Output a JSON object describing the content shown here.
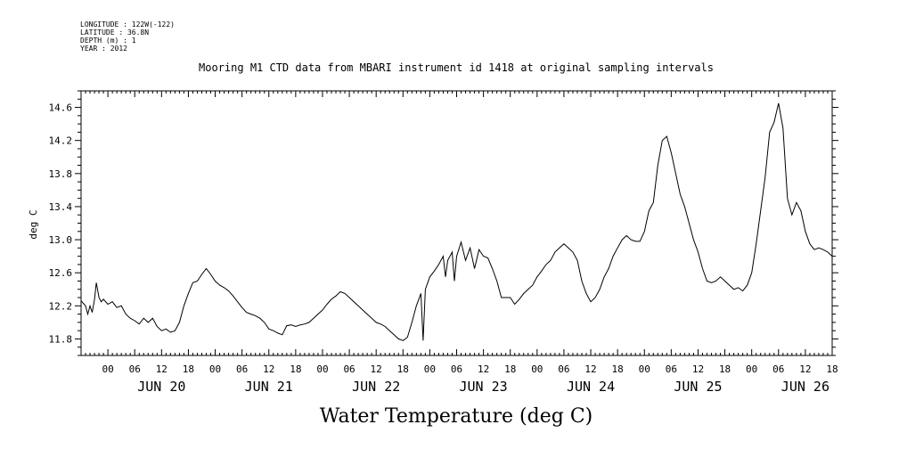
{
  "header": {
    "longitude": "LONGITUDE : 122W(-122)",
    "latitude": "LATITUDE : 36.8N",
    "depth": "DEPTH (m) : 1",
    "year": "YEAR : 2012"
  },
  "chart_data": {
    "type": "line",
    "title": "Mooring M1 CTD data from MBARI instrument id 1418 at original sampling intervals",
    "ylabel": "deg C",
    "xlabel": "Water Temperature (deg C)",
    "ylim": [
      11.6,
      14.8
    ],
    "xlim_hours": [
      -6,
      162
    ],
    "yticks": [
      "11.8",
      "12.2",
      "12.6",
      "13.0",
      "13.4",
      "13.8",
      "14.2",
      "14.6"
    ],
    "hour_labels": [
      "00",
      "06",
      "12",
      "18",
      "00",
      "06",
      "12",
      "18",
      "00",
      "06",
      "12",
      "18",
      "00",
      "06",
      "12",
      "18",
      "00",
      "06",
      "12",
      "18",
      "00",
      "06",
      "12",
      "18",
      "00",
      "06",
      "12",
      "18"
    ],
    "day_labels": [
      "JUN 20",
      "JUN 21",
      "JUN 22",
      "JUN 23",
      "JUN 24",
      "JUN 25",
      "JUN 26"
    ],
    "x_units": "hours from JUN 20 00:00",
    "series": [
      {
        "values": [
          [
            -6,
            12.26
          ],
          [
            -5,
            12.2
          ],
          [
            -4.5,
            12.1
          ],
          [
            -4,
            12.2
          ],
          [
            -3.5,
            12.12
          ],
          [
            -3,
            12.28
          ],
          [
            -2.6,
            12.48
          ],
          [
            -2,
            12.3
          ],
          [
            -1.5,
            12.25
          ],
          [
            -1,
            12.28
          ],
          [
            0,
            12.22
          ],
          [
            1,
            12.25
          ],
          [
            2,
            12.18
          ],
          [
            3,
            12.2
          ],
          [
            4,
            12.1
          ],
          [
            5,
            12.05
          ],
          [
            6,
            12.02
          ],
          [
            7,
            11.98
          ],
          [
            8,
            12.05
          ],
          [
            9,
            12.0
          ],
          [
            10,
            12.05
          ],
          [
            11,
            11.95
          ],
          [
            12,
            11.9
          ],
          [
            13,
            11.92
          ],
          [
            14,
            11.88
          ],
          [
            15,
            11.9
          ],
          [
            16,
            12.0
          ],
          [
            17,
            12.2
          ],
          [
            18,
            12.35
          ],
          [
            19,
            12.48
          ],
          [
            20,
            12.5
          ],
          [
            21,
            12.58
          ],
          [
            22,
            12.65
          ],
          [
            23,
            12.58
          ],
          [
            24,
            12.5
          ],
          [
            25,
            12.45
          ],
          [
            26,
            12.42
          ],
          [
            27,
            12.38
          ],
          [
            28,
            12.32
          ],
          [
            29,
            12.25
          ],
          [
            30,
            12.18
          ],
          [
            31,
            12.12
          ],
          [
            32,
            12.1
          ],
          [
            33,
            12.08
          ],
          [
            34,
            12.05
          ],
          [
            35,
            12.0
          ],
          [
            36,
            11.92
          ],
          [
            37,
            11.9
          ],
          [
            38,
            11.87
          ],
          [
            39,
            11.85
          ],
          [
            40,
            11.96
          ],
          [
            41,
            11.97
          ],
          [
            42,
            11.95
          ],
          [
            43,
            11.97
          ],
          [
            44,
            11.98
          ],
          [
            45,
            12.0
          ],
          [
            46,
            12.05
          ],
          [
            47,
            12.1
          ],
          [
            48,
            12.15
          ],
          [
            49,
            12.22
          ],
          [
            50,
            12.28
          ],
          [
            51,
            12.32
          ],
          [
            52,
            12.37
          ],
          [
            53,
            12.35
          ],
          [
            54,
            12.3
          ],
          [
            55,
            12.25
          ],
          [
            56,
            12.2
          ],
          [
            57,
            12.15
          ],
          [
            58,
            12.1
          ],
          [
            59,
            12.05
          ],
          [
            60,
            12.0
          ],
          [
            61,
            11.98
          ],
          [
            62,
            11.95
          ],
          [
            63,
            11.9
          ],
          [
            64,
            11.85
          ],
          [
            65,
            11.8
          ],
          [
            66,
            11.78
          ],
          [
            67,
            11.82
          ],
          [
            68,
            12.0
          ],
          [
            69,
            12.2
          ],
          [
            70,
            12.35
          ],
          [
            70.5,
            11.78
          ],
          [
            71,
            12.4
          ],
          [
            72,
            12.55
          ],
          [
            73,
            12.62
          ],
          [
            74,
            12.7
          ],
          [
            75,
            12.8
          ],
          [
            75.5,
            12.55
          ],
          [
            76,
            12.75
          ],
          [
            77,
            12.85
          ],
          [
            77.5,
            12.5
          ],
          [
            78,
            12.8
          ],
          [
            79,
            12.97
          ],
          [
            80,
            12.75
          ],
          [
            81,
            12.9
          ],
          [
            82,
            12.65
          ],
          [
            83,
            12.88
          ],
          [
            84,
            12.8
          ],
          [
            85,
            12.78
          ],
          [
            86,
            12.65
          ],
          [
            87,
            12.5
          ],
          [
            88,
            12.3
          ],
          [
            89,
            12.3
          ],
          [
            90,
            12.3
          ],
          [
            91,
            12.22
          ],
          [
            92,
            12.28
          ],
          [
            93,
            12.35
          ],
          [
            94,
            12.4
          ],
          [
            95,
            12.45
          ],
          [
            96,
            12.55
          ],
          [
            97,
            12.62
          ],
          [
            98,
            12.7
          ],
          [
            99,
            12.75
          ],
          [
            100,
            12.85
          ],
          [
            101,
            12.9
          ],
          [
            102,
            12.95
          ],
          [
            103,
            12.9
          ],
          [
            104,
            12.85
          ],
          [
            105,
            12.75
          ],
          [
            106,
            12.5
          ],
          [
            107,
            12.35
          ],
          [
            108,
            12.25
          ],
          [
            109,
            12.3
          ],
          [
            110,
            12.4
          ],
          [
            111,
            12.55
          ],
          [
            112,
            12.65
          ],
          [
            113,
            12.8
          ],
          [
            114,
            12.9
          ],
          [
            115,
            13.0
          ],
          [
            116,
            13.05
          ],
          [
            117,
            13.0
          ],
          [
            118,
            12.98
          ],
          [
            119,
            12.98
          ],
          [
            120,
            13.1
          ],
          [
            121,
            13.35
          ],
          [
            122,
            13.45
          ],
          [
            123,
            13.9
          ],
          [
            124,
            14.2
          ],
          [
            125,
            14.25
          ],
          [
            126,
            14.05
          ],
          [
            127,
            13.8
          ],
          [
            128,
            13.55
          ],
          [
            129,
            13.4
          ],
          [
            130,
            13.2
          ],
          [
            131,
            13.0
          ],
          [
            132,
            12.85
          ],
          [
            133,
            12.65
          ],
          [
            134,
            12.5
          ],
          [
            135,
            12.48
          ],
          [
            136,
            12.5
          ],
          [
            137,
            12.55
          ],
          [
            138,
            12.5
          ],
          [
            139,
            12.45
          ],
          [
            140,
            12.4
          ],
          [
            141,
            12.42
          ],
          [
            142,
            12.38
          ],
          [
            143,
            12.45
          ],
          [
            144,
            12.6
          ],
          [
            145,
            12.95
          ],
          [
            146,
            13.35
          ],
          [
            147,
            13.75
          ],
          [
            148,
            14.3
          ],
          [
            149,
            14.42
          ],
          [
            150,
            14.65
          ],
          [
            151,
            14.35
          ],
          [
            152,
            13.5
          ],
          [
            153,
            13.3
          ],
          [
            154,
            13.45
          ],
          [
            155,
            13.35
          ],
          [
            156,
            13.1
          ],
          [
            157,
            12.95
          ],
          [
            158,
            12.88
          ],
          [
            159,
            12.9
          ],
          [
            160,
            12.88
          ],
          [
            161,
            12.85
          ]
        ]
      }
    ]
  }
}
